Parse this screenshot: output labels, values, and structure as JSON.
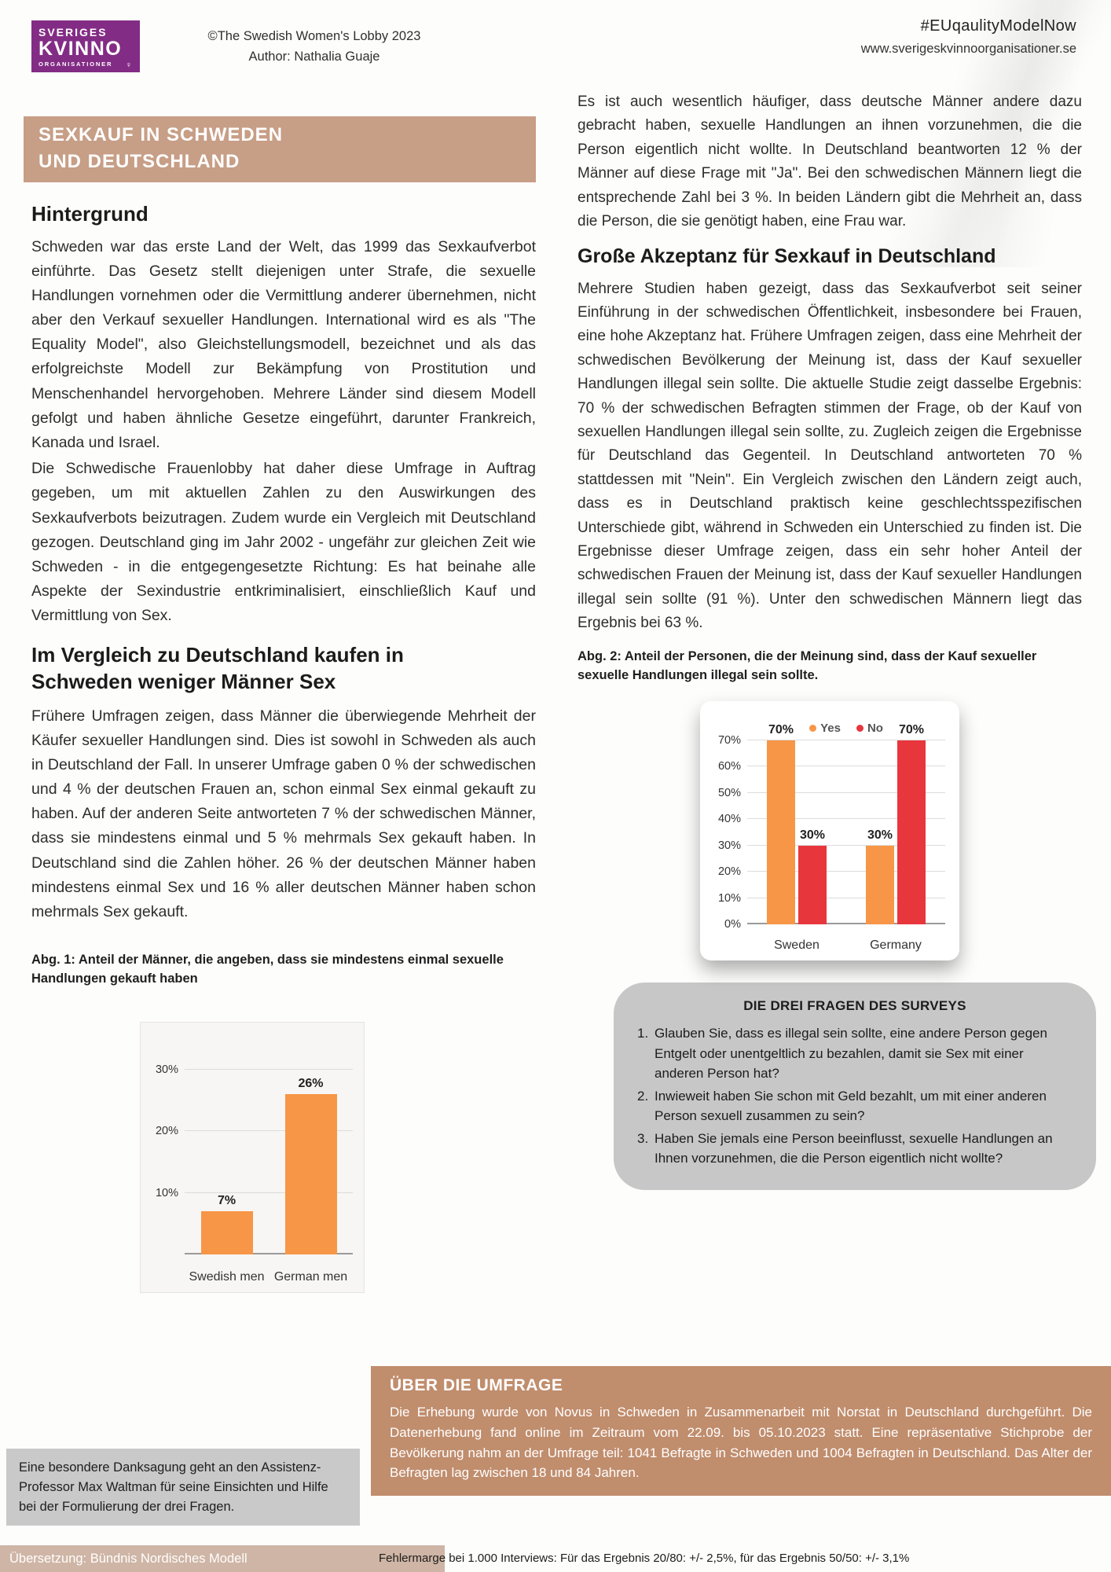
{
  "header": {
    "logo": {
      "line1": "SVERIGES",
      "line2": "KVINNO",
      "line3": "ORGANISATIONER",
      "female_symbol": "♀"
    },
    "copyright": "©The Swedish Women's Lobby 2023",
    "author": "Author: Nathalia Guaje",
    "hashtag": "#EUqaulityModelNow",
    "website": "www.sverigeskvinnoorganisationer.se"
  },
  "left": {
    "banner_line1": "SEXKAUF IN SCHWEDEN",
    "banner_line2": "UND DEUTSCHLAND",
    "heading_background": "Hintergrund",
    "para1": "Schweden war das erste Land der Welt, das 1999 das Sexkaufverbot einführte. Das Gesetz stellt diejenigen unter Strafe, die sexuelle Handlungen vornehmen oder die Vermittlung anderer übernehmen, nicht aber den Verkauf sexueller Handlungen. International wird es als \"The Equality Model\", also Gleichstellungsmodell, bezeichnet und als das erfolgreichste Modell zur Bekämpfung von Prostitution und Menschenhandel hervorgehoben. Mehrere Länder sind diesem Modell gefolgt und haben ähnliche Gesetze eingeführt, darunter Frankreich, Kanada und Israel.",
    "para2": "Die Schwedische Frauenlobby hat daher diese Umfrage in Auftrag gegeben, um mit aktuellen Zahlen zu den Auswirkungen des Sexkaufverbots beizutragen. Zudem wurde ein Vergleich mit Deutschland gezogen. Deutschland ging im Jahr 2002 - ungefähr zur gleichen Zeit wie Schweden - in die entgegengesetzte Richtung: Es hat beinahe alle Aspekte der Sexindustrie entkriminalisiert, einschließlich Kauf und Vermittlung von Sex.",
    "heading_comparison_line1": "Im Vergleich zu Deutschland kaufen in",
    "heading_comparison_line2": "Schweden weniger Männer Sex",
    "para3": "Frühere Umfragen zeigen, dass Männer die überwiegende Mehrheit der Käufer sexueller Handlungen sind. Dies ist sowohl in Schweden als auch in Deutschland der Fall. In unserer Umfrage gaben 0 % der schwedischen und 4 % der deutschen Frauen an, schon einmal Sex einmal gekauft zu haben. Auf der anderen Seite antworteten 7 % der schwedischen Männer, dass sie mindestens einmal und 5 % mehrmals Sex gekauft haben. In Deutschland sind die Zahlen höher. 26 % der deutschen Männer haben mindestens einmal Sex und 16 % aller deutschen Männer haben schon mehrmals Sex gekauft.",
    "fig1_caption": "Abg. 1: Anteil der Männer, die angeben, dass sie mindestens einmal sexuelle Handlungen gekauft haben",
    "acknowledgement": "Eine besondere Danksagung geht an den Assistenz-Professor Max Waltman für seine Einsichten und Hilfe bei der Formulierung der drei Fragen.",
    "translation_footer": "Übersetzung: Bündnis Nordisches Modell"
  },
  "right": {
    "para1": "Es ist auch wesentlich häufiger, dass deutsche Männer andere dazu gebracht haben, sexuelle Handlungen an ihnen vorzunehmen, die die Person eigentlich nicht wollte. In Deutschland beantworten 12 % der Männer auf diese Frage mit \"Ja\". Bei den schwedischen Männern liegt die entsprechende Zahl bei 3 %. In beiden Ländern gibt die Mehrheit an, dass die Person, die sie genötigt haben, eine Frau war.",
    "heading_acceptance": "Große Akzeptanz für Sexkauf in Deutschland",
    "para2": "Mehrere Studien haben gezeigt, dass das Sexkaufverbot seit seiner Einführung in der schwedischen Öffentlichkeit, insbesondere bei Frauen, eine hohe Akzeptanz hat. Frühere Umfragen zeigen, dass eine Mehrheit der schwedischen Bevölkerung der Meinung ist, dass der Kauf sexueller Handlungen illegal sein sollte. Die aktuelle Studie zeigt dasselbe Ergebnis: 70 % der schwedischen Befragten stimmen der Frage, ob der Kauf von sexuellen Handlungen illegal sein sollte, zu. Zugleich zeigen die Ergebnisse für Deutschland das Gegenteil. In Deutschland antworteten 70 % stattdessen mit \"Nein\". Ein Vergleich zwischen den Ländern zeigt auch, dass es in Deutschland praktisch keine geschlechtsspezifischen Unterschiede gibt, während in Schweden ein Unterschied zu finden ist. Die Ergebnisse dieser Umfrage zeigen, dass ein sehr hoher Anteil der schwedischen Frauen der Meinung ist, dass der Kauf sexueller Handlungen illegal sein sollte (91 %). Unter den schwedischen Männern liegt das Ergebnis bei 63 %.",
    "fig2_caption": "Abg. 2: Anteil der Personen, die der Meinung sind, dass der Kauf sexueller sexuelle Handlungen illegal sein sollte.",
    "survey_box": {
      "title": "DIE DREI FRAGEN DES SURVEYS",
      "questions": [
        "Glauben Sie, dass es illegal sein sollte, eine andere Person gegen Entgelt oder unentgeltlich zu bezahlen, damit sie Sex mit einer anderen Person hat?",
        "Inwieweit haben Sie schon mit Geld bezahlt, um mit einer anderen Person sexuell zusammen zu sein?",
        "Haben Sie jemals eine Person beeinflusst, sexuelle Handlungen an Ihnen vorzunehmen, die die Person eigentlich nicht wollte?"
      ]
    },
    "about_box": {
      "title": "ÜBER DIE UMFRAGE",
      "body": "Die Erhebung wurde von Novus in Schweden in Zusammenarbeit mit Norstat in Deutschland durchgeführt. Die Datenerhebung fand online im Zeitraum vom 22.09. bis 05.10.2023 statt. Eine repräsentative Stichprobe der Bevölkerung nahm an der Umfrage teil: 1041 Befragte in Schweden und 1004 Befragten in Deutschland. Das Alter der Befragten lag zwischen 18 und 84 Jahren.",
      "footnote": "Fehlermarge bei 1.000 Interviews: Für das Ergebnis 20/80: +/- 2,5%, für das Ergebnis 50/50: +/- 3,1%"
    }
  },
  "chart_data": [
    {
      "id": "fig1",
      "type": "bar",
      "title": "Anteil der Männer, die angeben, dass sie mindestens einmal sexuelle Handlungen gekauft haben",
      "categories": [
        "Swedish men",
        "German men"
      ],
      "series": [
        {
          "name": "",
          "color": "#f79646",
          "values": [
            7,
            26
          ]
        }
      ],
      "ymax": 33,
      "yticks": [
        10,
        20,
        30
      ],
      "ylabel": "",
      "xlabel": "",
      "grid": true,
      "legend": false
    },
    {
      "id": "fig2",
      "type": "bar",
      "title": "Anteil der Personen, die der Meinung sind, dass der Kauf sexueller Handlungen illegal sein sollte",
      "categories": [
        "Sweden",
        "Germany"
      ],
      "series": [
        {
          "name": "Yes",
          "color": "#f79646",
          "values": [
            70,
            30
          ]
        },
        {
          "name": "No",
          "color": "#e8363d",
          "values": [
            30,
            70
          ]
        }
      ],
      "ymax": 80,
      "yticks": [
        0,
        10,
        20,
        30,
        40,
        50,
        60,
        70
      ],
      "grid": true,
      "legend": true,
      "legend_position": "top"
    }
  ],
  "colors": {
    "banner_tan": "#c79e86",
    "about_tan": "#c08d6d",
    "footer_tan": "#cfb5a5",
    "logo_purple": "#832c85",
    "bar_orange": "#f79646",
    "bar_red": "#e8363d",
    "box_gray": "#c7c7c7"
  }
}
